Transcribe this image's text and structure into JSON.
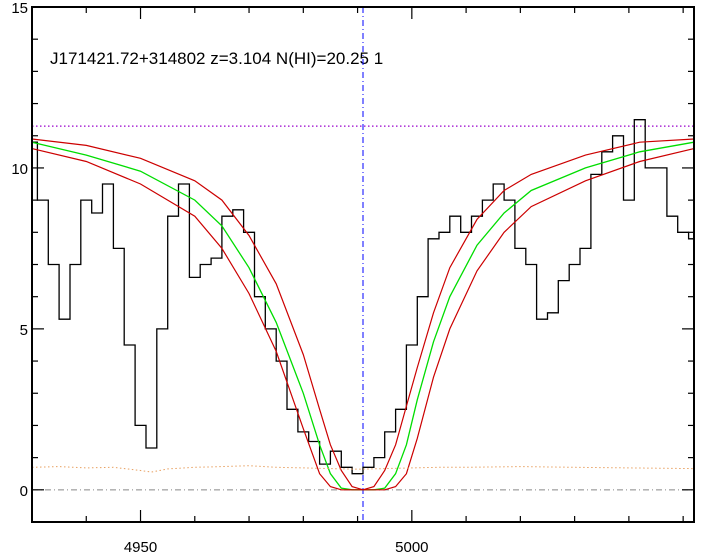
{
  "chart_data": {
    "type": "line",
    "title": "J171421.72+314802 z=3.104 N(HI)=20.25 1",
    "xlabel": "",
    "ylabel": "",
    "xlim": [
      4930,
      5052
    ],
    "ylim": [
      -1,
      15
    ],
    "x_ticks": [
      4950,
      5000
    ],
    "y_ticks": [
      0,
      5,
      10,
      15
    ],
    "grid": false,
    "legend": "none",
    "center_x": 4991,
    "continuum_level": 11.3,
    "zero_level": 0,
    "colors": {
      "spectrum": "#000000",
      "fit": "#00dd00",
      "fit_bounds": "#cc0000",
      "center_line": "#0000ff",
      "continuum_line": "#9900cc",
      "error": "#e8a060",
      "zero_line": "#888888"
    },
    "series": [
      {
        "kind": "spectrum",
        "x": [
          4930,
          4932,
          4934,
          4936,
          4938,
          4940,
          4942,
          4944,
          4946,
          4948,
          4950,
          4952,
          4954,
          4956,
          4958,
          4960,
          4962,
          4964,
          4966,
          4968,
          4970,
          4972,
          4974,
          4976,
          4978,
          4980,
          4982,
          4984,
          4986,
          4988,
          4990,
          4992,
          4994,
          4996,
          4998,
          5000,
          5002,
          5004,
          5006,
          5008,
          5010,
          5012,
          5014,
          5016,
          5018,
          5020,
          5022,
          5024,
          5026,
          5028,
          5030,
          5032,
          5034,
          5036,
          5038,
          5040,
          5042,
          5044,
          5046,
          5048,
          5050,
          5052
        ],
        "y": [
          10.8,
          9.0,
          7.0,
          5.3,
          7.0,
          9.0,
          8.6,
          9.5,
          7.5,
          4.5,
          2.0,
          1.3,
          5.0,
          8.5,
          9.5,
          6.6,
          7.0,
          7.2,
          8.5,
          8.7,
          8.0,
          6.0,
          5.0,
          4.0,
          2.5,
          1.8,
          1.5,
          0.8,
          1.2,
          0.7,
          0.5,
          0.7,
          1.0,
          1.8,
          2.5,
          4.5,
          6.0,
          7.8,
          8.0,
          8.5,
          8.0,
          8.5,
          9.0,
          9.5,
          9.0,
          7.5,
          7.0,
          5.3,
          5.5,
          6.5,
          7.0,
          7.5,
          9.8,
          10.5,
          11.0,
          9.0,
          11.5,
          10.0,
          10.0,
          8.5,
          8.0,
          7.8
        ]
      },
      {
        "kind": "fit",
        "x": [
          4930,
          4940,
          4950,
          4960,
          4965,
          4970,
          4975,
          4980,
          4983,
          4985,
          4987,
          4989,
          4991,
          4993,
          4995,
          4997,
          4999,
          5001,
          5004,
          5007,
          5012,
          5017,
          5022,
          5032,
          5042,
          5052
        ],
        "y": [
          10.8,
          10.4,
          9.9,
          9.0,
          8.2,
          6.9,
          5.2,
          3.0,
          1.4,
          0.5,
          0.05,
          0,
          0,
          0,
          0.05,
          0.5,
          1.4,
          2.8,
          4.6,
          6.0,
          7.6,
          8.6,
          9.3,
          10.0,
          10.5,
          10.8
        ]
      },
      {
        "kind": "fit-upper",
        "x": [
          4930,
          4940,
          4950,
          4960,
          4965,
          4970,
          4975,
          4980,
          4983,
          4985,
          4987,
          4989,
          4991,
          4993,
          4995,
          4997,
          4999,
          5001,
          5004,
          5007,
          5012,
          5017,
          5022,
          5032,
          5042,
          5052
        ],
        "y": [
          10.9,
          10.7,
          10.3,
          9.6,
          9.0,
          7.9,
          6.4,
          4.2,
          2.5,
          1.4,
          0.6,
          0.1,
          0,
          0.1,
          0.6,
          1.4,
          2.6,
          3.8,
          5.5,
          6.9,
          8.4,
          9.3,
          9.8,
          10.4,
          10.8,
          10.9
        ]
      },
      {
        "kind": "fit-lower",
        "x": [
          4930,
          4940,
          4950,
          4960,
          4965,
          4970,
          4975,
          4980,
          4983,
          4985,
          4987,
          4989,
          4991,
          4993,
          4995,
          4997,
          4999,
          5001,
          5004,
          5007,
          5012,
          5017,
          5022,
          5032,
          5042,
          5052
        ],
        "y": [
          10.6,
          10.2,
          9.5,
          8.5,
          7.5,
          6.1,
          4.3,
          1.9,
          0.5,
          0.1,
          0,
          0,
          0,
          0,
          0,
          0.1,
          0.5,
          1.6,
          3.5,
          5.0,
          6.8,
          8.0,
          8.8,
          9.6,
          10.2,
          10.6
        ]
      },
      {
        "kind": "error",
        "x": [
          4930,
          4935,
          4940,
          4945,
          4950,
          4952,
          4955,
          4960,
          4965,
          4970,
          4975,
          4980,
          4985,
          4990,
          4995,
          5000,
          5005,
          5010,
          5020,
          5030,
          5040,
          5052
        ],
        "y": [
          0.7,
          0.72,
          0.68,
          0.7,
          0.6,
          0.55,
          0.65,
          0.7,
          0.72,
          0.75,
          0.7,
          0.68,
          0.66,
          0.64,
          0.66,
          0.68,
          0.7,
          0.7,
          0.72,
          0.7,
          0.68,
          0.66
        ]
      }
    ]
  }
}
